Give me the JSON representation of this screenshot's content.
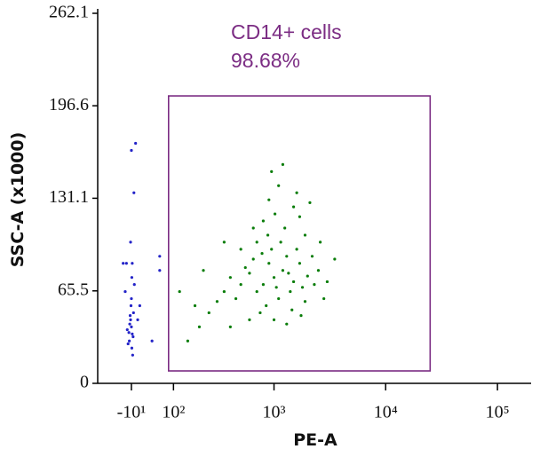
{
  "chart_data": {
    "type": "scatter",
    "xlabel": "PE-A",
    "ylabel": "SSC-A (x1000)",
    "xscale": "biexponential",
    "xlim": [
      -100,
      200000
    ],
    "ylim": [
      0,
      262.1
    ],
    "xticks": [
      {
        "value": -10,
        "label": "-10¹"
      },
      {
        "value": 100,
        "label": "10²"
      },
      {
        "value": 1000,
        "label": "10³"
      },
      {
        "value": 10000,
        "label": "10⁴"
      },
      {
        "value": 100000,
        "label": "10⁵"
      }
    ],
    "yticks": [
      0,
      65.5,
      131.1,
      196.6,
      262.1
    ],
    "gate": {
      "label": "CD14+ cells",
      "percent": "98.68%",
      "x": [
        85,
        25000
      ],
      "y": [
        8.8,
        203.6
      ],
      "color": "#7b2c83"
    },
    "series": [
      {
        "color": "#0a7d0a",
        "x": [
          1000,
          800,
          1200,
          1500,
          700,
          900,
          1100,
          1300,
          600,
          2000,
          1700,
          950,
          850,
          1400,
          1800,
          500,
          650,
          1150,
          2500,
          750,
          1250,
          1600,
          450,
          1050,
          1350,
          550,
          2200,
          1900,
          880,
          1020,
          3000,
          400,
          1450,
          780,
          1700,
          2600,
          350,
          300,
          1100,
          900,
          1600,
          250,
          200,
          150,
          120,
          180,
          220,
          2800,
          3500,
          600,
          1000,
          1300,
          700,
          800,
          1900,
          2300,
          500,
          1200,
          950,
          1500,
          2100,
          400,
          350,
          650,
          1750
        ],
        "values": [
          75,
          70,
          80,
          72,
          65,
          85,
          60,
          90,
          78,
          76,
          85,
          95,
          55,
          65,
          68,
          70,
          88,
          100,
          80,
          50,
          110,
          95,
          60,
          68,
          78,
          82,
          90,
          58,
          105,
          120,
          72,
          75,
          52,
          92,
          118,
          100,
          65,
          58,
          140,
          130,
          135,
          50,
          40,
          30,
          65,
          55,
          80,
          60,
          88,
          45,
          45,
          42,
          100,
          115,
          105,
          70,
          95,
          155,
          150,
          125,
          128,
          40,
          100,
          110,
          48
        ]
      },
      {
        "color": "#2323c8",
        "x": [
          -10,
          -8,
          -12,
          -15,
          -5,
          -20,
          -9,
          -11,
          -14,
          -6,
          -18,
          -10,
          -13,
          -7,
          -16,
          -25,
          -30,
          -8,
          -3,
          5,
          -12,
          -4,
          -10,
          0,
          -22,
          10,
          -9,
          60,
          60,
          40
        ],
        "values": [
          40,
          35,
          45,
          30,
          50,
          38,
          25,
          55,
          42,
          33,
          28,
          60,
          48,
          20,
          36,
          65,
          85,
          85,
          70,
          45,
          100,
          135,
          165,
          170,
          85,
          55,
          75,
          80,
          90,
          30
        ]
      }
    ]
  }
}
